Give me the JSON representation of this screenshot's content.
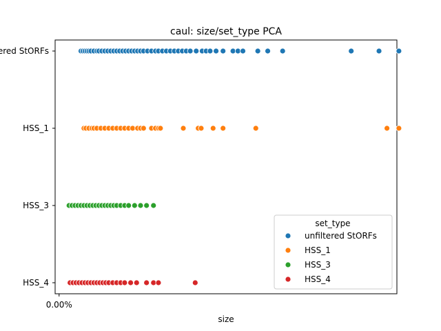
{
  "chart_data": {
    "type": "scatter",
    "title": "caul: size/set_type PCA",
    "xlabel": "size",
    "ylabel": "",
    "x_tick_labels": [
      {
        "value": 0,
        "label": "0.00%"
      }
    ],
    "xlim": [
      -0.004,
      0.34
    ],
    "categories": [
      "unfiltered StORFs",
      "HSS_1",
      "HSS_3",
      "HSS_4"
    ],
    "y_tick_labels": [
      "unfiltered StORFs",
      "HSS_1",
      "HSS_3",
      "HSS_4"
    ],
    "legend": {
      "title": "set_type",
      "placement": "lower-right",
      "entries": [
        "unfiltered StORFs",
        "HSS_1",
        "HSS_3",
        "HSS_4"
      ]
    },
    "grid": false,
    "series": [
      {
        "name": "unfiltered StORFs",
        "color": "#1f77b4",
        "category": "unfiltered StORFs",
        "x": [
          0.022,
          0.024,
          0.026,
          0.028,
          0.03,
          0.032,
          0.035,
          0.038,
          0.04,
          0.043,
          0.046,
          0.049,
          0.052,
          0.055,
          0.058,
          0.061,
          0.064,
          0.067,
          0.07,
          0.073,
          0.076,
          0.079,
          0.082,
          0.085,
          0.089,
          0.093,
          0.097,
          0.1,
          0.104,
          0.108,
          0.112,
          0.116,
          0.12,
          0.124,
          0.128,
          0.132,
          0.138,
          0.144,
          0.148,
          0.152,
          0.158,
          0.165,
          0.175,
          0.18,
          0.185,
          0.2,
          0.21,
          0.225,
          0.294,
          0.322,
          0.342
        ]
      },
      {
        "name": "HSS_1",
        "color": "#ff7f0e",
        "category": "HSS_1",
        "x": [
          0.025,
          0.027,
          0.03,
          0.033,
          0.035,
          0.038,
          0.042,
          0.046,
          0.05,
          0.054,
          0.058,
          0.062,
          0.066,
          0.07,
          0.074,
          0.079,
          0.082,
          0.085,
          0.093,
          0.097,
          0.1,
          0.102,
          0.125,
          0.14,
          0.143,
          0.155,
          0.165,
          0.198,
          0.33,
          0.342
        ]
      },
      {
        "name": "HSS_3",
        "color": "#2ca02c",
        "category": "HSS_3",
        "x": [
          0.01,
          0.013,
          0.016,
          0.019,
          0.022,
          0.025,
          0.028,
          0.031,
          0.034,
          0.037,
          0.04,
          0.043,
          0.046,
          0.049,
          0.052,
          0.055,
          0.058,
          0.062,
          0.066,
          0.07,
          0.076,
          0.082,
          0.088,
          0.095
        ]
      },
      {
        "name": "HSS_4",
        "color": "#d62728",
        "category": "HSS_4",
        "x": [
          0.011,
          0.014,
          0.017,
          0.02,
          0.023,
          0.026,
          0.029,
          0.032,
          0.035,
          0.038,
          0.041,
          0.044,
          0.047,
          0.05,
          0.054,
          0.058,
          0.062,
          0.066,
          0.072,
          0.078,
          0.088,
          0.095,
          0.1,
          0.137
        ]
      }
    ]
  }
}
